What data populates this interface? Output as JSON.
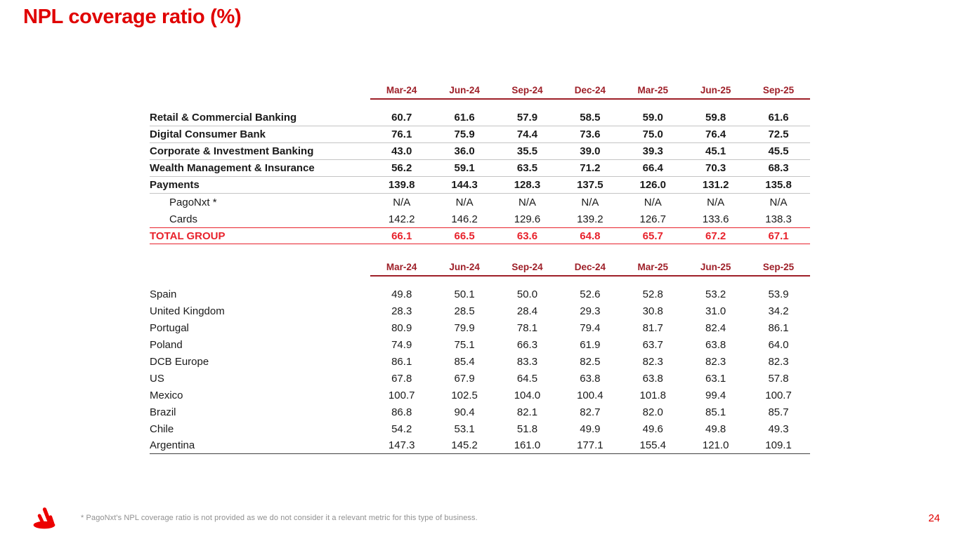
{
  "page": {
    "title": "NPL coverage ratio (%)",
    "footnote": "* PagoNxt's NPL coverage ratio is not provided as we do not consider it a relevant metric for this type of business.",
    "page_number": "24"
  },
  "colors": {
    "santander_red": "#E00000",
    "header_red": "#9E1F28",
    "total_red": "#E8222C",
    "row_separator": "#C4C4C4",
    "table_end_line": "#404040",
    "footnote_gray": "#909090"
  },
  "columns": [
    "Mar-24",
    "Jun-24",
    "Sep-24",
    "Dec-24",
    "Mar-25",
    "Jun-25",
    "Sep-25"
  ],
  "segments_table": {
    "rows": [
      {
        "label": "Retail & Commercial Banking",
        "style": "",
        "values": [
          "60.7",
          "61.6",
          "57.9",
          "58.5",
          "59.0",
          "59.8",
          "61.6"
        ]
      },
      {
        "label": "Digital Consumer Bank",
        "style": "",
        "values": [
          "76.1",
          "75.9",
          "74.4",
          "73.6",
          "75.0",
          "76.4",
          "72.5"
        ]
      },
      {
        "label": "Corporate & Investment Banking",
        "style": "",
        "values": [
          "43.0",
          "36.0",
          "35.5",
          "39.0",
          "39.3",
          "45.1",
          "45.5"
        ]
      },
      {
        "label": "Wealth Management & Insurance",
        "style": "",
        "values": [
          "56.2",
          "59.1",
          "63.5",
          "71.2",
          "66.4",
          "70.3",
          "68.3"
        ]
      },
      {
        "label": "Payments",
        "style": "",
        "values": [
          "139.8",
          "144.3",
          "128.3",
          "137.5",
          "126.0",
          "131.2",
          "135.8"
        ]
      },
      {
        "label": "PagoNxt *",
        "style": "indent",
        "values": [
          "N/A",
          "N/A",
          "N/A",
          "N/A",
          "N/A",
          "N/A",
          "N/A"
        ]
      },
      {
        "label": "Cards",
        "style": "indent",
        "values": [
          "142.2",
          "146.2",
          "129.6",
          "139.2",
          "126.7",
          "133.6",
          "138.3"
        ]
      }
    ],
    "total": {
      "label": "TOTAL GROUP",
      "values": [
        "66.1",
        "66.5",
        "63.6",
        "64.8",
        "65.7",
        "67.2",
        "67.1"
      ]
    }
  },
  "countries_table": {
    "rows": [
      {
        "label": "Spain",
        "values": [
          "49.8",
          "50.1",
          "50.0",
          "52.6",
          "52.8",
          "53.2",
          "53.9"
        ]
      },
      {
        "label": "United Kingdom",
        "values": [
          "28.3",
          "28.5",
          "28.4",
          "29.3",
          "30.8",
          "31.0",
          "34.2"
        ]
      },
      {
        "label": "Portugal",
        "values": [
          "80.9",
          "79.9",
          "78.1",
          "79.4",
          "81.7",
          "82.4",
          "86.1"
        ]
      },
      {
        "label": "Poland",
        "values": [
          "74.9",
          "75.1",
          "66.3",
          "61.9",
          "63.7",
          "63.8",
          "64.0"
        ]
      },
      {
        "label": "DCB Europe",
        "values": [
          "86.1",
          "85.4",
          "83.3",
          "82.5",
          "82.3",
          "82.3",
          "82.3"
        ]
      },
      {
        "label": "US",
        "values": [
          "67.8",
          "67.9",
          "64.5",
          "63.8",
          "63.8",
          "63.1",
          "57.8"
        ]
      },
      {
        "label": "Mexico",
        "values": [
          "100.7",
          "102.5",
          "104.0",
          "100.4",
          "101.8",
          "99.4",
          "100.7"
        ]
      },
      {
        "label": "Brazil",
        "values": [
          "86.8",
          "90.4",
          "82.1",
          "82.7",
          "82.0",
          "85.1",
          "85.7"
        ]
      },
      {
        "label": "Chile",
        "values": [
          "54.2",
          "53.1",
          "51.8",
          "49.9",
          "49.6",
          "49.8",
          "49.3"
        ]
      },
      {
        "label": "Argentina",
        "values": [
          "147.3",
          "145.2",
          "161.0",
          "177.1",
          "155.4",
          "121.0",
          "109.1"
        ]
      }
    ]
  },
  "logo": {
    "name": "santander-flame",
    "color": "#EC0000"
  }
}
